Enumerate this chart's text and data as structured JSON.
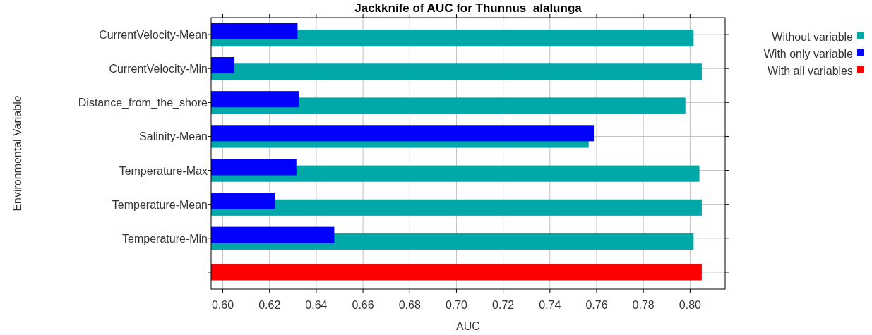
{
  "chart_data": {
    "type": "bar",
    "orientation": "horizontal",
    "title": "Jackknife of AUC for Thunnus_alalunga",
    "xlabel": "AUC",
    "ylabel": "Environmental Variable",
    "categories": [
      "CurrentVelocity-Mean",
      "CurrentVelocity-Min",
      "Distance_from_the_shore",
      "Salinity-Mean",
      "Temperature-Max",
      "Temperature-Mean",
      "Temperature-Min",
      null
    ],
    "series": [
      {
        "name": "Without variable",
        "color": "#00a8a8",
        "values": [
          0.8015,
          0.805,
          0.798,
          0.7566,
          0.804,
          0.805,
          0.8015,
          null
        ]
      },
      {
        "name": "With only variable",
        "color": "#0000ff",
        "values": [
          0.632,
          0.605,
          0.6326,
          0.7588,
          0.6315,
          0.6223,
          0.6477,
          null
        ]
      },
      {
        "name": "With all variables",
        "color": "#ff0000",
        "values": [
          null,
          null,
          null,
          null,
          null,
          null,
          null,
          0.805
        ]
      }
    ],
    "xlim": [
      0.595,
      0.815
    ],
    "xticks": [
      {
        "value": 0.6,
        "label": "0.60"
      },
      {
        "value": 0.62,
        "label": "0.62"
      },
      {
        "value": 0.64,
        "label": "0.64"
      },
      {
        "value": 0.66,
        "label": "0.66"
      },
      {
        "value": 0.68,
        "label": "0.68"
      },
      {
        "value": 0.7,
        "label": "0.70"
      },
      {
        "value": 0.72,
        "label": "0.72"
      },
      {
        "value": 0.74,
        "label": "0.74"
      },
      {
        "value": 0.76,
        "label": "0.76"
      },
      {
        "value": 0.78,
        "label": "0.78"
      },
      {
        "value": 0.8,
        "label": "0.80"
      }
    ],
    "grid": true,
    "legend": "top right"
  }
}
